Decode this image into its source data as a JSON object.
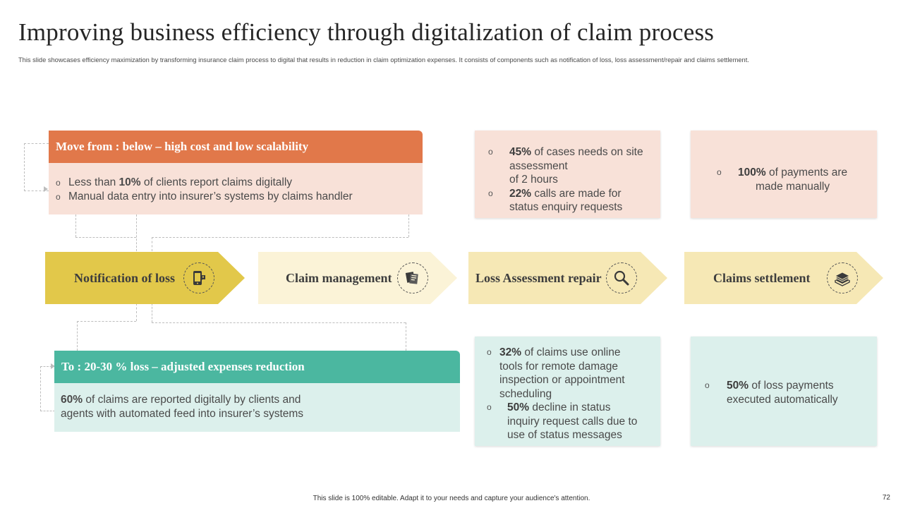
{
  "slide": {
    "title": "Improving business efficiency through digitalization of claim process",
    "subtitle": "This slide showcases efficiency maximization by transforming insurance claim process to digital that results in reduction in claim optimization expenses. It consists of components such as notification of loss, loss assessment/repair and claims settlement.",
    "footer": "This slide is 100% editable. Adapt it to your needs and capture your audience's attention.",
    "page_number": "72"
  },
  "colors": {
    "orange": "#E1784A",
    "orange_light": "#F8E1D8",
    "teal": "#4BB7A0",
    "teal_light": "#DCF0EC",
    "gold": "#E2C84A",
    "cream": "#FBF3D7",
    "sand": "#F6E8B5"
  },
  "move_from": {
    "heading": "Move from : below – high cost and low scalability",
    "bullet_symbol": "o",
    "line1_pre": "Less than ",
    "line1_bold": "10%",
    "line1_post": " of clients report claims digitally",
    "line2": "Manual data entry into insurer’s systems by claims handler"
  },
  "move_to": {
    "heading": "To : 20-30 % loss – adjusted expenses reduction",
    "bold": "60%",
    "text_line1": " of claims are reported digitally by clients and",
    "text_line2": "agents with automated feed into insurer’s systems"
  },
  "stages": [
    {
      "label": "Notification of loss",
      "icon": "mobile-alert-icon"
    },
    {
      "label": "Claim management",
      "icon": "documents-icon"
    },
    {
      "label": "Loss Assessment repair",
      "icon": "magnifier-icon"
    },
    {
      "label": "Claims settlement",
      "icon": "money-stack-icon"
    }
  ],
  "top_stats": {
    "loss_assessment": {
      "item1_bold": "45%",
      "item1_l1": " of cases needs on site",
      "item1_l2": "assessment",
      "item1_l3": "of 2 hours",
      "item2_bold": "22%",
      "item2_l1": " calls are made for",
      "item2_l2": "status enquiry requests"
    },
    "settlement": {
      "bold": "100%",
      "l1": " of payments are",
      "l2": "made manually"
    }
  },
  "bottom_stats": {
    "loss_assessment": {
      "item1_bold": "32%",
      "item1_l1": " of claims use online",
      "item1_l2": "tools for remote damage",
      "item1_l3": "inspection or appointment",
      "item1_l4": "scheduling",
      "item2_bold": "50%",
      "item2_l1": " decline in status",
      "item2_l2": "inquiry request calls due to",
      "item2_l3": "use of status messages"
    },
    "settlement": {
      "bold": "50%",
      "l1": " of loss payments",
      "l2": "executed automatically"
    }
  }
}
